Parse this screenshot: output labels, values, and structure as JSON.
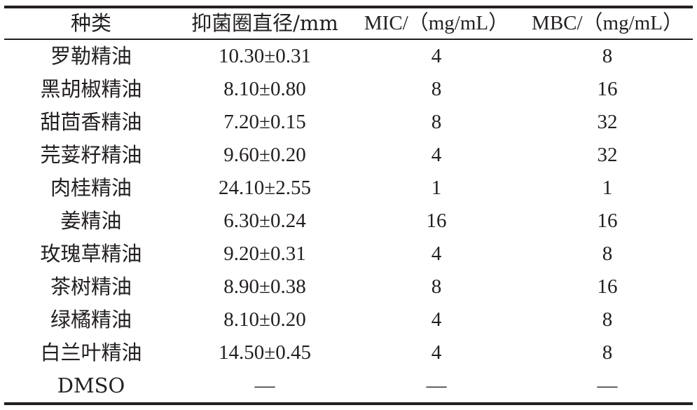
{
  "table": {
    "headers": [
      "种类",
      "抑菌圈直径/mm",
      "MIC/（mg/mL）",
      "MBC/（mg/mL）"
    ],
    "rows": [
      [
        "罗勒精油",
        "10.30±0.31",
        "4",
        "8"
      ],
      [
        "黑胡椒精油",
        "8.10±0.80",
        "8",
        "16"
      ],
      [
        "甜茴香精油",
        "7.20±0.15",
        "8",
        "32"
      ],
      [
        "芫荽籽精油",
        "9.60±0.20",
        "4",
        "32"
      ],
      [
        "肉桂精油",
        "24.10±2.55",
        "1",
        "1"
      ],
      [
        "姜精油",
        "6.30±0.24",
        "16",
        "16"
      ],
      [
        "玫瑰草精油",
        "9.20±0.31",
        "4",
        "8"
      ],
      [
        "茶树精油",
        "8.90±0.38",
        "8",
        "16"
      ],
      [
        "绿橘精油",
        "8.10±0.20",
        "4",
        "8"
      ],
      [
        "白兰叶精油",
        "14.50±0.45",
        "4",
        "8"
      ],
      [
        "DMSO",
        "—",
        "—",
        "—"
      ]
    ]
  }
}
